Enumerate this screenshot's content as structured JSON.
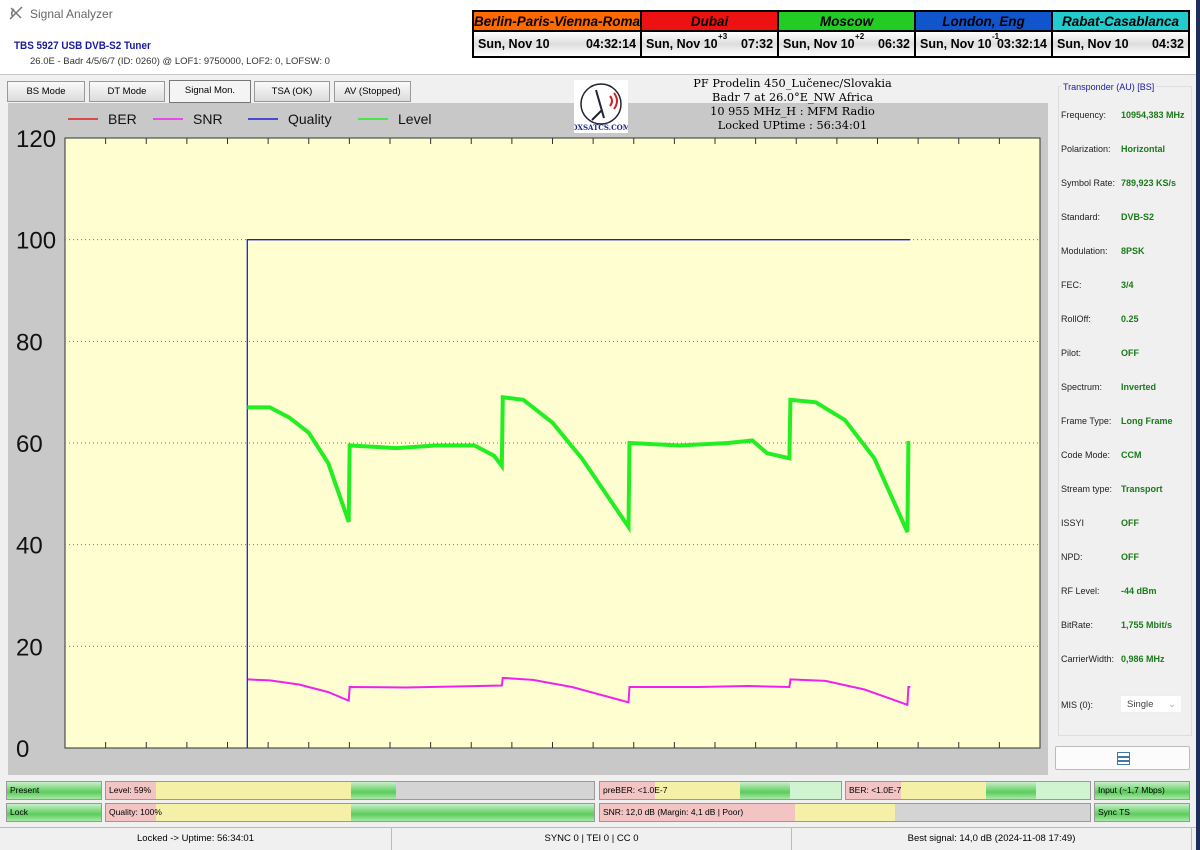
{
  "window": {
    "title": "Signal Analyzer",
    "icon": "satellite-dish-icon"
  },
  "tuner": {
    "name": "TBS 5927 USB DVB-S2 Tuner",
    "info": "26.0E - Badr 4/5/6/7 (ID: 0260) @ LOF1: 9750000, LOF2: 0, LOFSW: 0"
  },
  "clocks": [
    {
      "city": "Berlin-Paris-Vienna-Roma",
      "date": "Sun, Nov 10",
      "offset": "",
      "time": "04:32:14",
      "color": "#ff6a00",
      "text_color": "#000000"
    },
    {
      "city": "Dubai",
      "date": "Sun, Nov 10",
      "offset": "+3",
      "time": "07:32",
      "color": "#ee1111",
      "text_color": "#000000"
    },
    {
      "city": "Moscow",
      "date": "Sun, Nov 10",
      "offset": "+2",
      "time": "06:32",
      "color": "#22cc22",
      "text_color": "#000000"
    },
    {
      "city": "London, Eng",
      "date": "Sun, Nov 10",
      "offset": "-1",
      "time": "03:32:14",
      "color": "#1155cc",
      "text_color": "#000000"
    },
    {
      "city": "Rabat-Casablanca",
      "date": "Sun, Nov 10",
      "offset": "",
      "time": "04:32",
      "color": "#22cccc",
      "text_color": "#000000"
    }
  ],
  "tabs": [
    {
      "label": "BS Mode"
    },
    {
      "label": "DT Mode"
    },
    {
      "label": "Signal Mon.",
      "selected": true
    },
    {
      "label": "TSA (OK)"
    },
    {
      "label": "AV (Stopped)"
    }
  ],
  "logo": {
    "text": "DXSATCS.COM"
  },
  "header": {
    "line1": "PF Prodelin 450_Lučenec/Slovakia",
    "line2": "Badr 7 at 26.0°E_NW Africa",
    "line3": "10 955 MHz_H : MFM Radio",
    "line4": "Locked UPtime : 56:34:01"
  },
  "chart_data": {
    "type": "line",
    "ylim": [
      0,
      120
    ],
    "xlim": [
      0,
      100
    ],
    "yticks": [
      "0",
      "20",
      "40",
      "60",
      "80",
      "100",
      "120"
    ],
    "grid": true,
    "legend_placement": "top-left",
    "background": "#fefed0",
    "series": [
      {
        "name": "BER",
        "color": "#e02020",
        "points": [
          [
            18.7,
            0
          ],
          [
            18.7,
            0
          ]
        ]
      },
      {
        "name": "SNR",
        "color": "#ee22ee",
        "points": [
          [
            18.7,
            13.5
          ],
          [
            21,
            13.3
          ],
          [
            24,
            12.5
          ],
          [
            27,
            11
          ],
          [
            29.1,
            9.3
          ],
          [
            29.2,
            12
          ],
          [
            35,
            11.9
          ],
          [
            40,
            12.1
          ],
          [
            44.8,
            12.3
          ],
          [
            44.9,
            13.8
          ],
          [
            48,
            13.4
          ],
          [
            52,
            12
          ],
          [
            57.8,
            9
          ],
          [
            57.9,
            12
          ],
          [
            65,
            12
          ],
          [
            70,
            12.2
          ],
          [
            74.3,
            12
          ],
          [
            74.4,
            13.5
          ],
          [
            78,
            13.2
          ],
          [
            82,
            11.5
          ],
          [
            86.4,
            8.5
          ],
          [
            86.5,
            12
          ],
          [
            86.7,
            12
          ]
        ]
      },
      {
        "name": "Quality",
        "color": "#2020d0",
        "points": [
          [
            18.7,
            0
          ],
          [
            18.7,
            100
          ],
          [
            86.7,
            100
          ]
        ]
      },
      {
        "name": "Level",
        "color": "#22ee22",
        "points": [
          [
            18.7,
            67
          ],
          [
            21,
            67
          ],
          [
            23,
            65
          ],
          [
            25,
            62
          ],
          [
            27,
            56
          ],
          [
            29.1,
            44.5
          ],
          [
            29.2,
            59.5
          ],
          [
            34,
            59
          ],
          [
            38,
            59.5
          ],
          [
            42,
            59.5
          ],
          [
            44,
            57.5
          ],
          [
            44.8,
            55.5
          ],
          [
            44.9,
            69
          ],
          [
            47,
            68.5
          ],
          [
            50,
            64
          ],
          [
            53,
            57
          ],
          [
            57.8,
            43.5
          ],
          [
            57.9,
            60
          ],
          [
            63,
            59.5
          ],
          [
            68,
            60
          ],
          [
            70.5,
            60.5
          ],
          [
            72,
            58
          ],
          [
            74.3,
            57
          ],
          [
            74.4,
            68.5
          ],
          [
            77,
            68
          ],
          [
            80,
            64.5
          ],
          [
            83,
            57
          ],
          [
            86.4,
            42.5
          ],
          [
            86.5,
            60
          ],
          [
            86.7,
            60
          ]
        ]
      }
    ]
  },
  "panel": {
    "title": "Transponder (AU) [BS]",
    "rows": [
      {
        "label": "Frequency:",
        "value": "10954,383 MHz"
      },
      {
        "label": "Polarization:",
        "value": "Horizontal"
      },
      {
        "label": "Symbol Rate:",
        "value": "789,923 KS/s"
      },
      {
        "label": "Standard:",
        "value": "DVB-S2"
      },
      {
        "label": "Modulation:",
        "value": "8PSK"
      },
      {
        "label": "FEC:",
        "value": "3/4"
      },
      {
        "label": "RollOff:",
        "value": "0.25"
      },
      {
        "label": "Pilot:",
        "value": "OFF"
      },
      {
        "label": "Spectrum:",
        "value": "Inverted"
      },
      {
        "label": "Frame Type:",
        "value": "Long Frame"
      },
      {
        "label": "Code Mode:",
        "value": "CCM"
      },
      {
        "label": "Stream type:",
        "value": "Transport"
      },
      {
        "label": "ISSYI",
        "value": "OFF"
      },
      {
        "label": "NPD:",
        "value": "OFF"
      },
      {
        "label": "RF Level:",
        "value": "-44 dBm"
      },
      {
        "label": "BitRate:",
        "value": "1,755 Mbit/s"
      },
      {
        "label": "CarrierWidth:",
        "value": "0,986 MHz"
      }
    ],
    "mis_label": "MIS (0):",
    "mis_value": "Single"
  },
  "gauges": {
    "present": "Present",
    "level": "Level: 59%",
    "level_value": 59,
    "prebér": "",
    "preber": "preBER: <1.0E-7",
    "ber": "BER: <1.0E-7",
    "input": "Input (~1,7 Mbps)",
    "lock": "Lock",
    "quality": "Quality: 100%",
    "quality_value": 100,
    "snr": "SNR: 12,0 dB (Margin: 4,1 dB | Poor)",
    "sync": "Sync TS"
  },
  "status": {
    "uptime": "Locked -> Uptime: 56:34:01",
    "counters": "SYNC 0 | TEI 0 | CC 0",
    "best": "Best signal: 14,0 dB (2024-11-08 17:49)"
  }
}
